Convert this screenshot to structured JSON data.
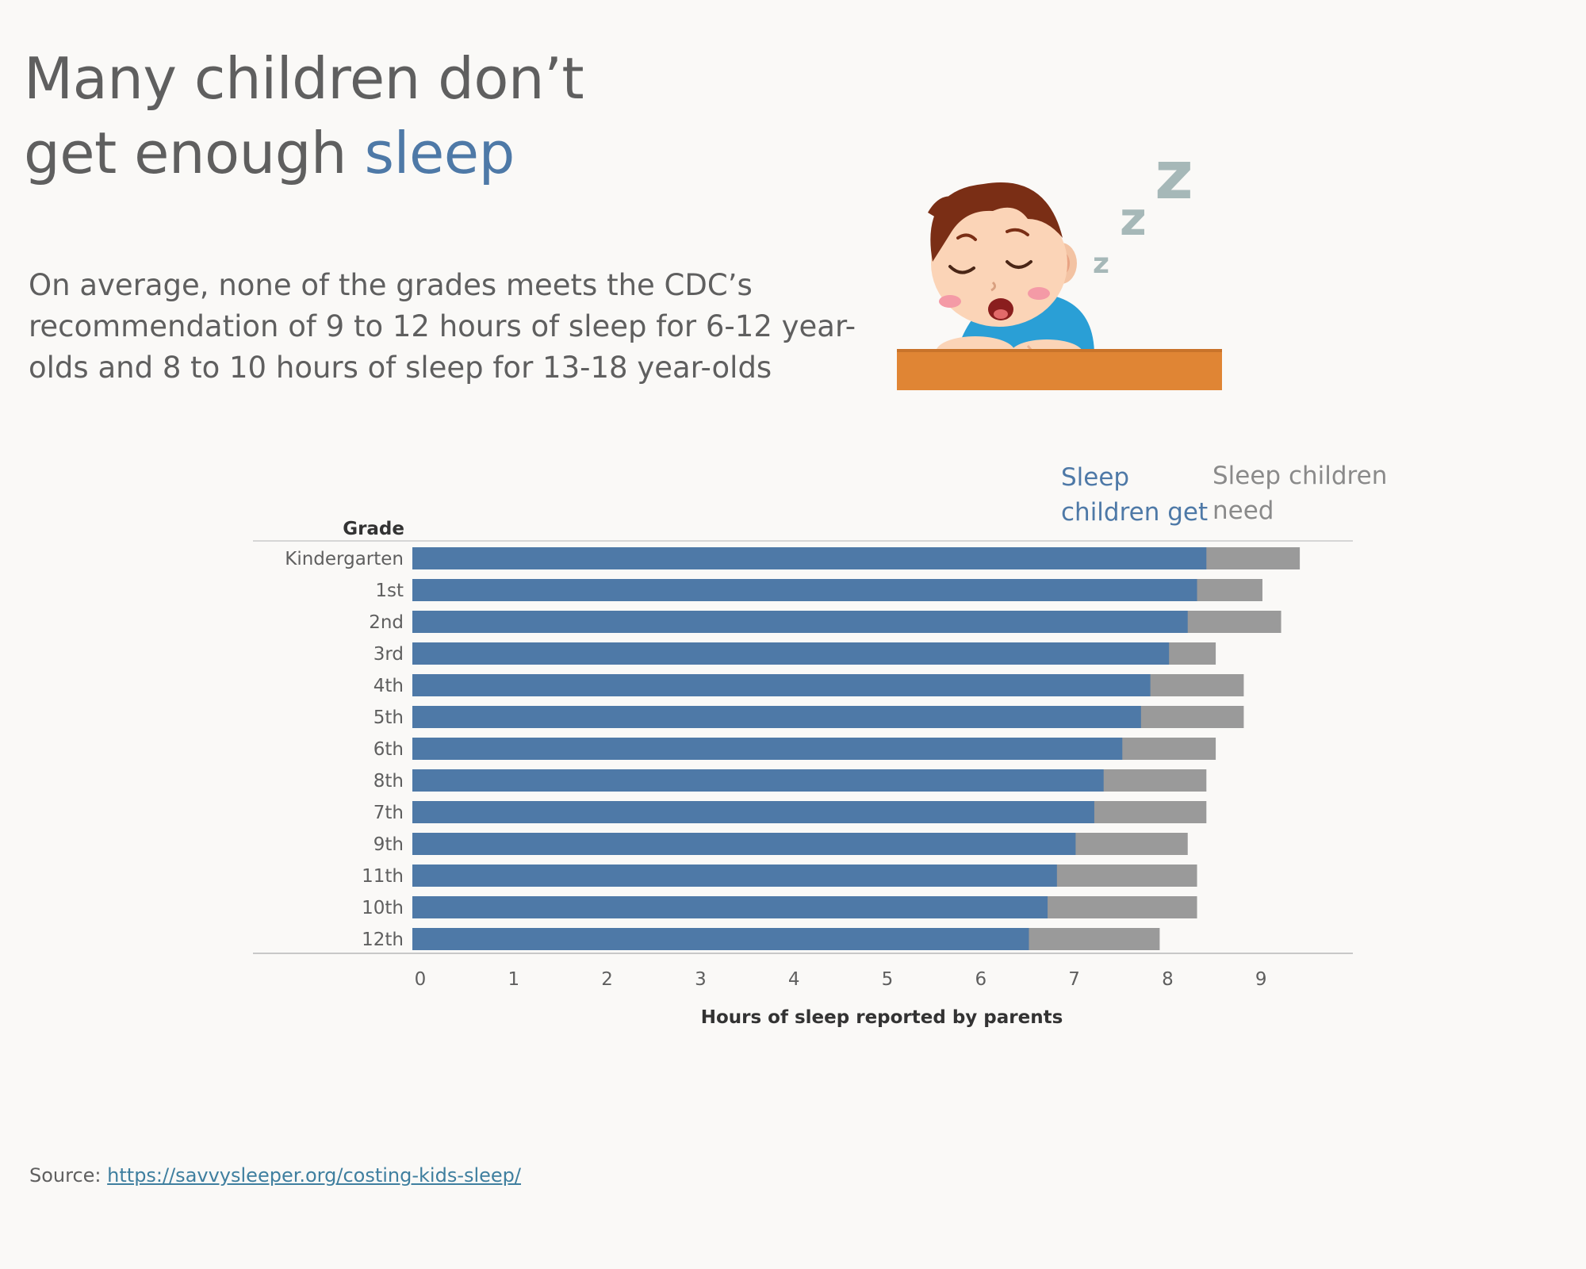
{
  "header": {
    "title_line1": "Many children don’t",
    "title_line2_prefix": "get enough ",
    "title_line2_accent": "sleep",
    "subtitle": "On average, none of the grades meets the CDC’s recommendation of 9 to 12 hours of sleep for 6-12 year-olds and 8 to 10 hours of sleep for 13-18 year-olds"
  },
  "legend": {
    "get_label": "Sleep children get",
    "need_label": "Sleep children need"
  },
  "colors": {
    "get": "#4e79a7",
    "need": "#9a9a9a",
    "title_accent": "#4e79a7",
    "desk": "#e08534"
  },
  "icons": {
    "illustration": "sleeping-child-icon"
  },
  "chart_data": {
    "type": "bar",
    "orientation": "horizontal",
    "categories": [
      "Kindergarten",
      "1st",
      "2nd",
      "3rd",
      "4th",
      "5th",
      "6th",
      "8th",
      "7th",
      "9th",
      "11th",
      "10th",
      "12th"
    ],
    "series": [
      {
        "name": "Sleep children get",
        "values": [
          8.5,
          8.4,
          8.3,
          8.1,
          7.9,
          7.8,
          7.6,
          7.4,
          7.3,
          7.1,
          6.9,
          6.8,
          6.6
        ]
      },
      {
        "name": "Sleep children need",
        "values": [
          9.5,
          9.1,
          9.3,
          8.6,
          8.9,
          8.9,
          8.6,
          8.5,
          8.5,
          8.3,
          8.4,
          8.4,
          8.0
        ]
      }
    ],
    "overlay": true,
    "title": "",
    "ylabel": "Grade",
    "xlabel": "Hours of sleep reported by parents",
    "xticks": [
      0,
      1,
      2,
      3,
      4,
      5,
      6,
      7,
      8,
      9
    ],
    "xlim": [
      0,
      10
    ],
    "grid": false,
    "legend_position": "top-right"
  },
  "source": {
    "label": "Source: ",
    "link_text": "https://savvysleeper.org/costing-kids-sleep/"
  }
}
